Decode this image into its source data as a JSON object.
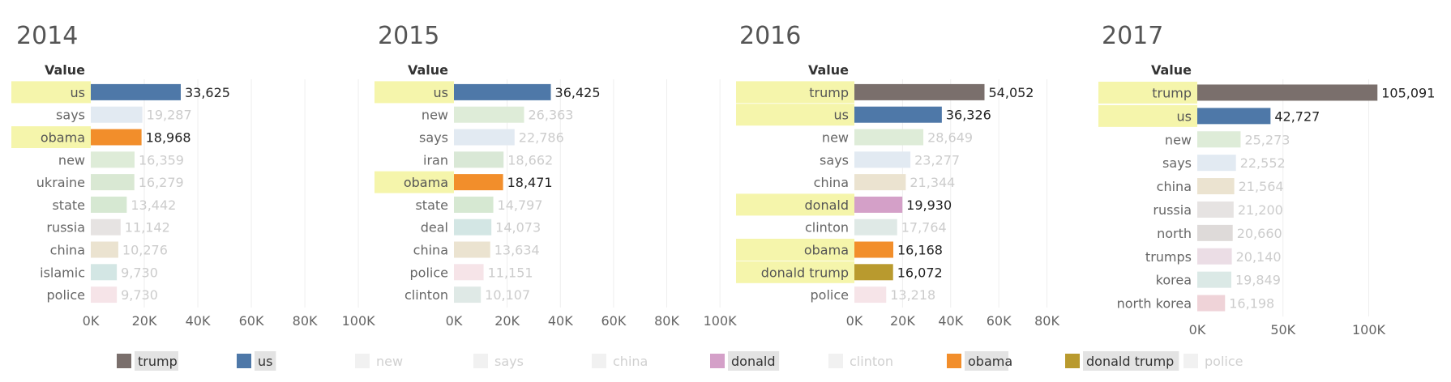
{
  "colors": {
    "trump": "#7a6f6c",
    "us": "#4e78a8",
    "obama": "#f28e2b",
    "donald": "#d4a0c8",
    "donald trump": "#b99a2e",
    "new": "#deecd8",
    "says": "#e2eaf2",
    "china": "#ebe3d0",
    "clinton": "#dfe9e6",
    "police": "#f6e4e8",
    "ukraine": "#d9e8d3",
    "state": "#d6e8d2",
    "russia": "#e6e3e2",
    "islamic": "#d3e6e4",
    "iran": "#d9e8d6",
    "deal": "#d3e6e4",
    "north": "#dedad9",
    "trumps": "#ebdde5",
    "korea": "#dbe9e6",
    "north korea": "#efd3d8",
    "highlight": "#f5f5ab"
  },
  "chart_data": [
    {
      "type": "bar",
      "title": "2014",
      "column_header": "Value",
      "categories": [
        "us",
        "says",
        "obama",
        "new",
        "ukraine",
        "state",
        "russia",
        "china",
        "islamic",
        "police"
      ],
      "values": [
        33625,
        19287,
        18968,
        16359,
        16279,
        13442,
        11142,
        10276,
        9730,
        9730
      ],
      "value_labels": [
        "33,625",
        "19,287",
        "18,968",
        "16,359",
        "16,279",
        "13,442",
        "11,142",
        "10,276",
        "9,730",
        "9,730"
      ],
      "highlighted": [
        "us",
        "obama"
      ],
      "xlim": [
        0,
        103000
      ],
      "ticks": [
        0,
        20000,
        40000,
        60000,
        80000,
        100000
      ],
      "tick_labels": [
        "0K",
        "20K",
        "40K",
        "60K",
        "80K",
        "100K"
      ]
    },
    {
      "type": "bar",
      "title": "2015",
      "column_header": "Value",
      "categories": [
        "us",
        "new",
        "says",
        "iran",
        "obama",
        "state",
        "deal",
        "china",
        "police",
        "clinton"
      ],
      "values": [
        36425,
        26363,
        22786,
        18662,
        18471,
        14797,
        14073,
        13634,
        11151,
        10107
      ],
      "value_labels": [
        "36,425",
        "26,363",
        "22,786",
        "18,662",
        "18,471",
        "14,797",
        "14,073",
        "13,634",
        "11,151",
        "10,107"
      ],
      "highlighted": [
        "us",
        "obama"
      ],
      "xlim": [
        0,
        103000
      ],
      "ticks": [
        0,
        20000,
        40000,
        60000,
        80000,
        100000
      ],
      "tick_labels": [
        "0K",
        "20K",
        "40K",
        "60K",
        "80K",
        "100K"
      ]
    },
    {
      "type": "bar",
      "title": "2016",
      "column_header": "Value",
      "categories": [
        "trump",
        "us",
        "new",
        "says",
        "china",
        "donald",
        "clinton",
        "obama",
        "donald trump",
        "police"
      ],
      "values": [
        54052,
        36326,
        28649,
        23277,
        21344,
        19930,
        17764,
        16168,
        16072,
        13218
      ],
      "value_labels": [
        "54,052",
        "36,326",
        "28,649",
        "23,277",
        "21,344",
        "19,930",
        "17,764",
        "16,168",
        "16,072",
        "13,218"
      ],
      "highlighted": [
        "trump",
        "us",
        "donald",
        "obama",
        "donald trump"
      ],
      "xlim": [
        0,
        98000
      ],
      "ticks": [
        0,
        20000,
        40000,
        60000,
        80000
      ],
      "tick_labels": [
        "0K",
        "20K",
        "40K",
        "60K",
        "80K"
      ]
    },
    {
      "type": "bar",
      "title": "2017",
      "column_header": "Value",
      "categories": [
        "trump",
        "us",
        "new",
        "says",
        "china",
        "russia",
        "north",
        "trumps",
        "korea",
        "north korea"
      ],
      "values": [
        105091,
        42727,
        25273,
        22552,
        21564,
        21200,
        20660,
        20140,
        19849,
        16198
      ],
      "value_labels": [
        "105,091",
        "42,727",
        "25,273",
        "22,552",
        "21,564",
        "21,200",
        "20,660",
        "20,140",
        "19,849",
        "16,198"
      ],
      "highlighted": [
        "trump",
        "us"
      ],
      "xlim": [
        0,
        148000
      ],
      "ticks": [
        0,
        50000,
        100000
      ],
      "tick_labels": [
        "0K",
        "50K",
        "100K"
      ]
    }
  ],
  "legend": [
    {
      "label": "trump",
      "active": true
    },
    {
      "label": "us",
      "active": true
    },
    {
      "label": "new",
      "active": false
    },
    {
      "label": "says",
      "active": false
    },
    {
      "label": "china",
      "active": false
    },
    {
      "label": "donald",
      "active": true
    },
    {
      "label": "clinton",
      "active": false
    },
    {
      "label": "obama",
      "active": true
    },
    {
      "label": "donald trump",
      "active": true
    },
    {
      "label": "police",
      "active": false
    }
  ]
}
